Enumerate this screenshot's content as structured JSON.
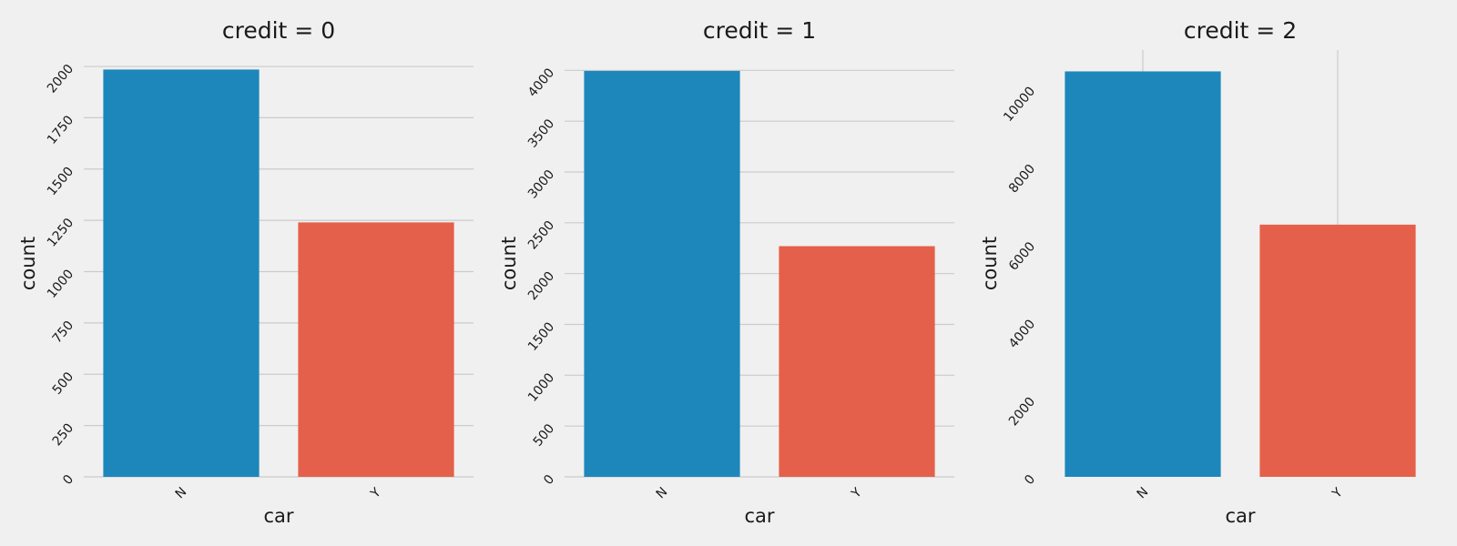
{
  "colors": {
    "background": "#f0f0f0",
    "grid": "#cbcbcb",
    "bar_N": "#1d87bb",
    "bar_Y": "#e4604a"
  },
  "chart_data": [
    {
      "type": "bar",
      "title": "credit = 0",
      "xlabel": "car",
      "ylabel": "count",
      "categories": [
        "N",
        "Y"
      ],
      "values": [
        1985,
        1240
      ],
      "ylim": [
        0,
        2080
      ],
      "yticks": [
        0,
        250,
        500,
        750,
        1000,
        1250,
        1500,
        1750,
        2000
      ],
      "grid": "horizontal"
    },
    {
      "type": "bar",
      "title": "credit = 1",
      "xlabel": "car",
      "ylabel": "count",
      "categories": [
        "N",
        "Y"
      ],
      "values": [
        3995,
        2270
      ],
      "ylim": [
        0,
        4200
      ],
      "yticks": [
        0,
        500,
        1000,
        1500,
        2000,
        2500,
        3000,
        3500,
        4000
      ],
      "grid": "horizontal"
    },
    {
      "type": "bar",
      "title": "credit = 2",
      "xlabel": "car",
      "ylabel": "count",
      "categories": [
        "N",
        "Y"
      ],
      "values": [
        10450,
        6500
      ],
      "ylim": [
        0,
        11000
      ],
      "yticks": [
        0,
        2000,
        4000,
        6000,
        8000,
        10000
      ],
      "grid": "vertical"
    }
  ]
}
